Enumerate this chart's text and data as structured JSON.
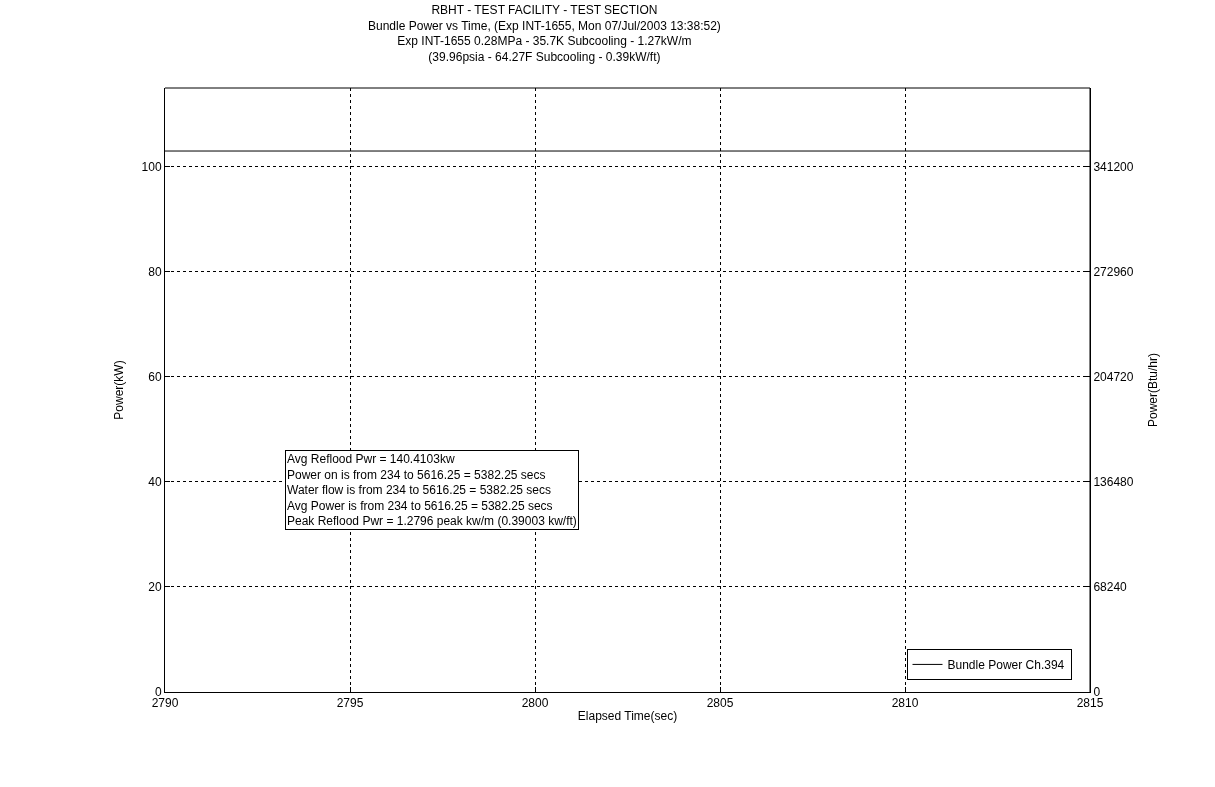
{
  "chart_data": {
    "type": "line",
    "title": "RBHT - TEST FACILITY - TEST SECTION",
    "subtitle": "Bundle Power vs Time, (Exp INT-1655, Mon 07/Jul/2003 13:38:52)\nExp INT-1655 0.28MPa - 35.7K Subcooling - 1.27kW/m\n(39.96psia - 64.27F Subcooling - 0.39kW/ft)",
    "xlabel": "Elapsed Time(sec)",
    "ylabel": "Power(kW)",
    "y2label": "Power(Btu/hr)",
    "series": [
      {
        "name": "Bundle Power Ch.394",
        "color": "#000000",
        "x": [
          2790,
          2815
        ],
        "values": [
          103,
          103
        ]
      }
    ],
    "xlim": [
      2790,
      2815
    ],
    "xticks": [
      2790,
      2795,
      2800,
      2805,
      2810,
      2815
    ],
    "ylim": [
      0,
      115
    ],
    "yticks": [
      0,
      20,
      40,
      60,
      80,
      100
    ],
    "y2lim": [
      0,
      392380
    ],
    "y2ticks": [
      0,
      68240,
      136480,
      204720,
      272960,
      341200
    ],
    "annotations": [
      "Avg Reflood Pwr = 140.4103kw",
      "Power on is from 234 to 5616.25 = 5382.25 secs",
      "Water flow is from 234 to 5616.25 = 5382.25 secs",
      "Avg Power is from 234 to 5616.25 = 5382.25 secs",
      "Peak Reflood Pwr = 1.2796 peak kw/m (0.39003 kw/ft)"
    ],
    "grid": true,
    "legend": "bottom right",
    "marker": "none",
    "line_style": "solid"
  }
}
